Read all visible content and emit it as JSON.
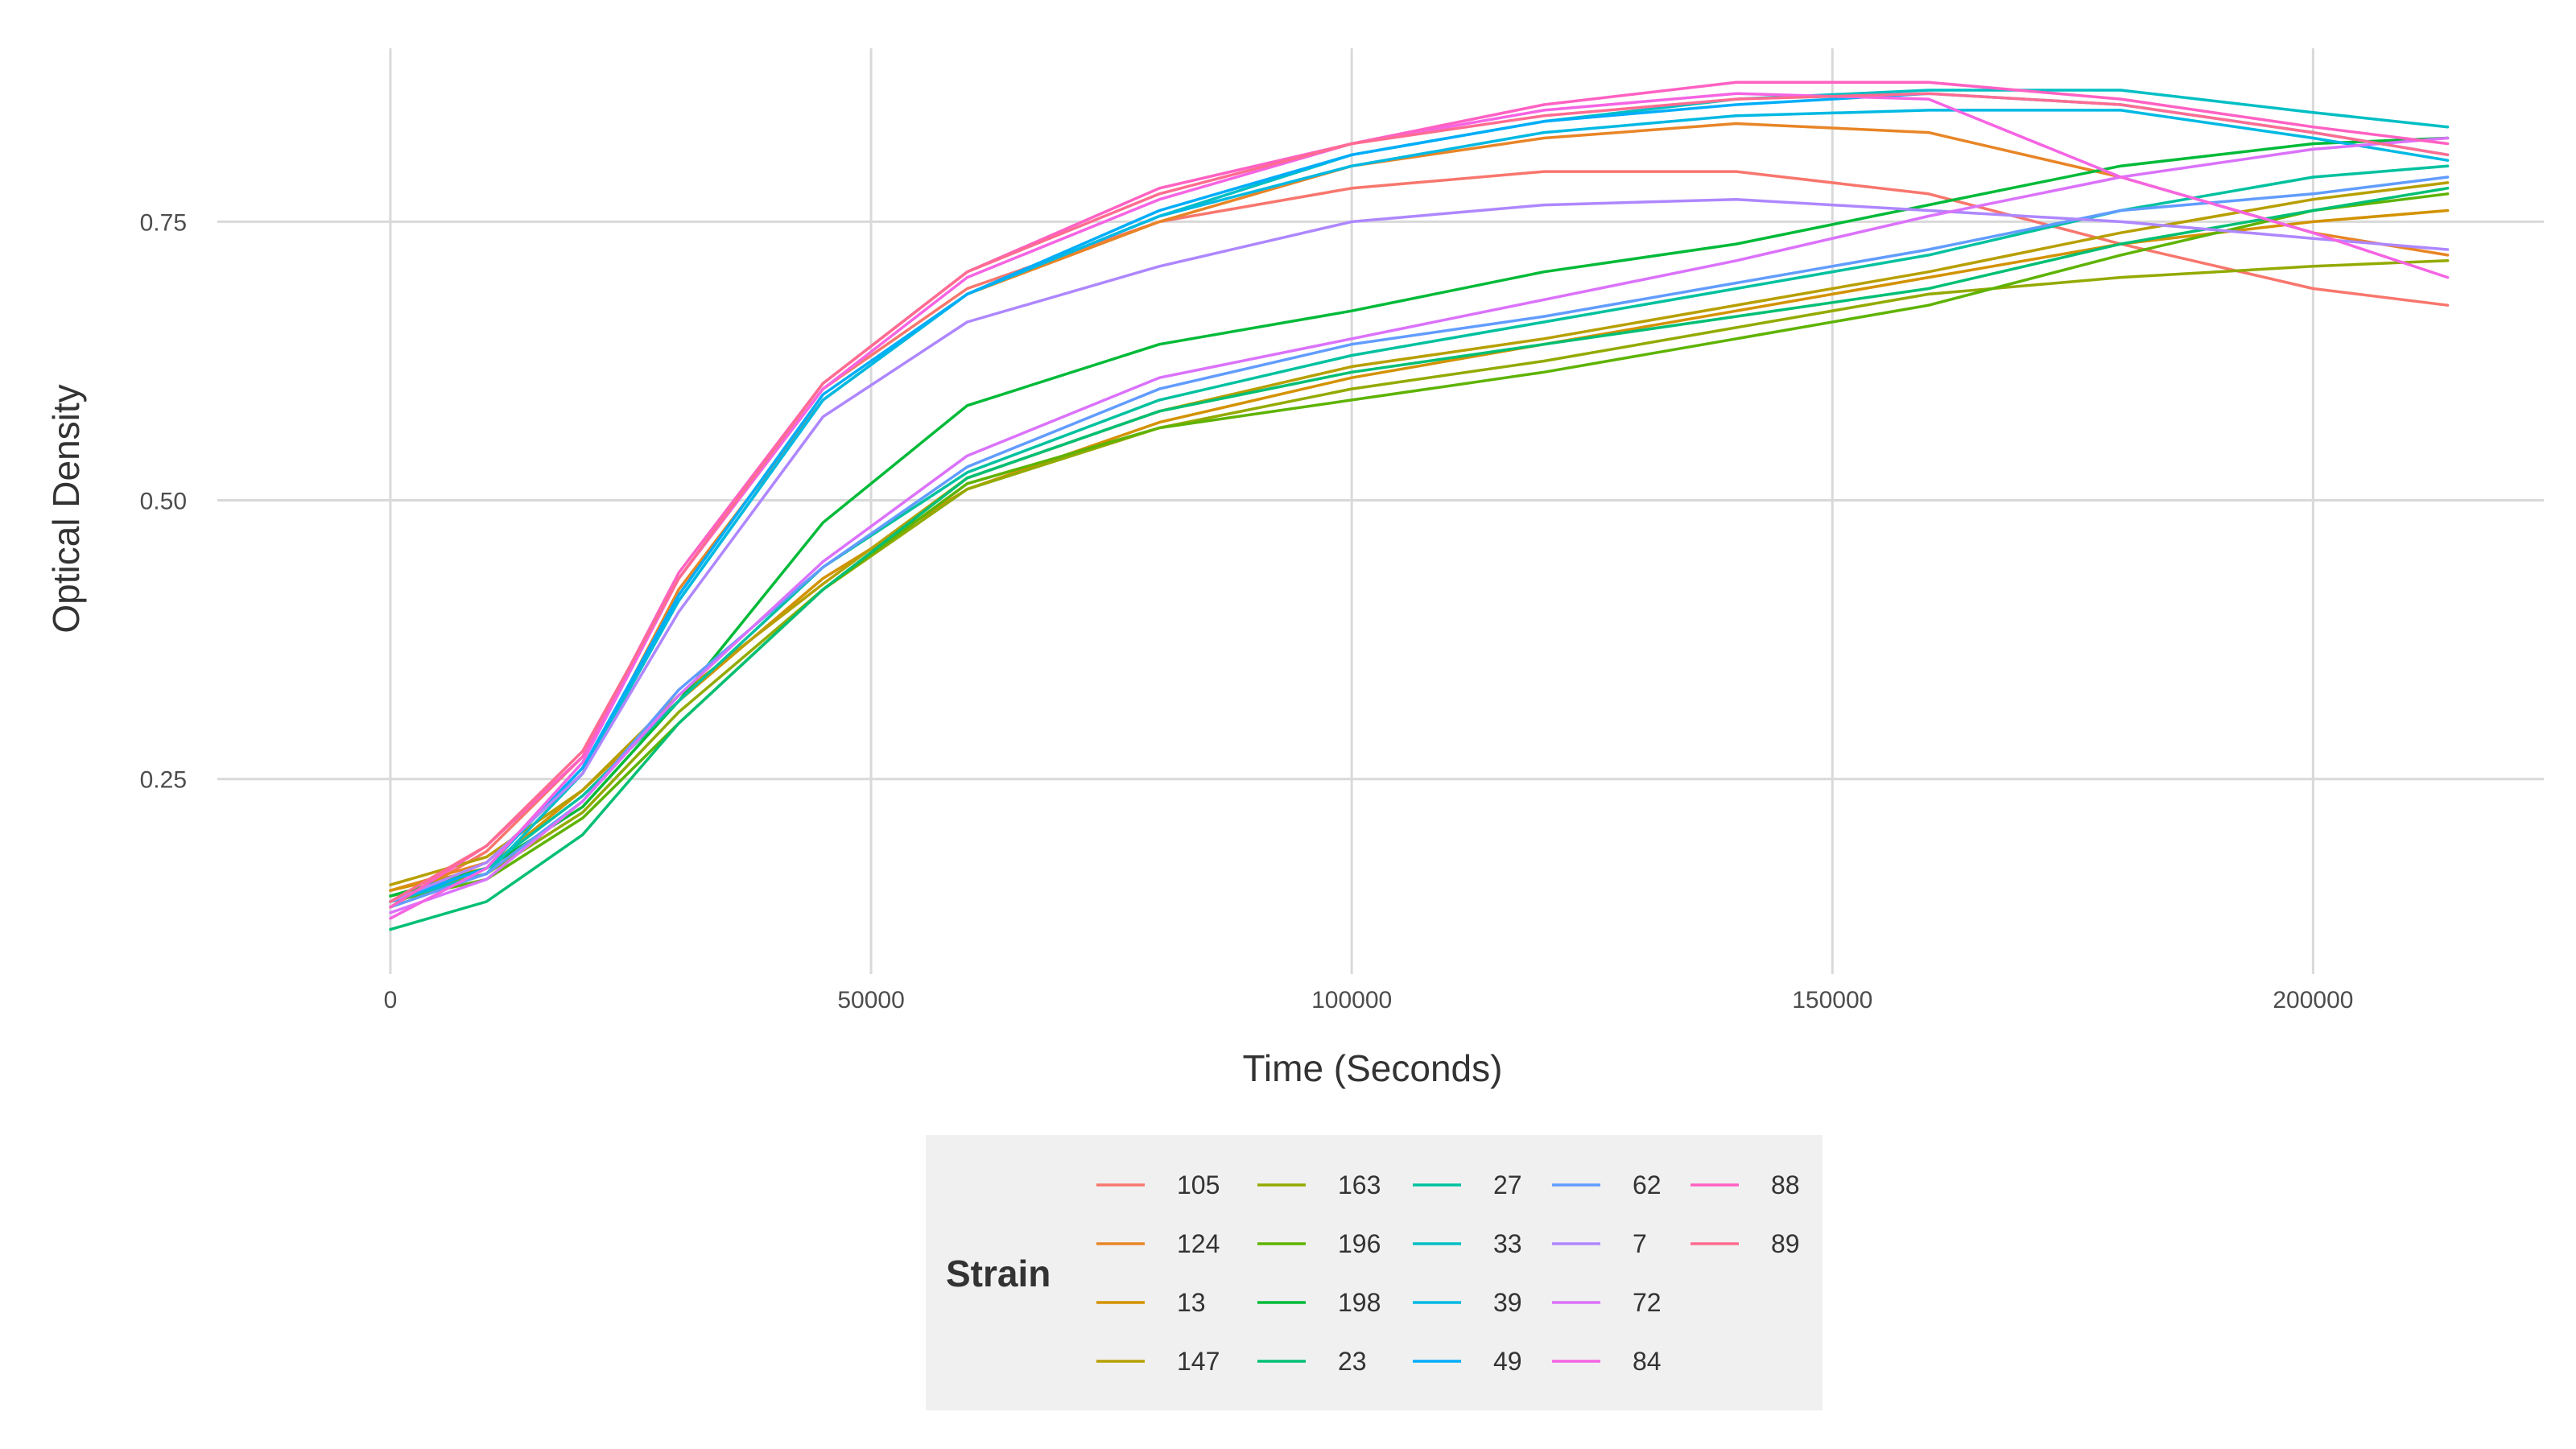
{
  "chart_data": {
    "type": "line",
    "title": "",
    "xlabel": "Time (Seconds)",
    "ylabel": "Optical Density",
    "xlim": [
      -18000,
      224000
    ],
    "ylim": [
      0.075,
      0.92
    ],
    "x_ticks": [
      0,
      50000,
      100000,
      150000,
      200000
    ],
    "y_ticks": [
      0.25,
      0.5,
      0.75
    ],
    "x_tick_labels": [
      "0",
      "50000",
      "100000",
      "150000",
      "200000"
    ],
    "y_tick_labels": [
      "0.25",
      "0.50",
      "0.75"
    ],
    "grid": true,
    "legend": {
      "title": "Strain",
      "position": "bottom",
      "columns": 5
    },
    "series": [
      {
        "name": "105",
        "color": "#F8766D",
        "x": [
          0,
          10000,
          20000,
          30000,
          45000,
          60000,
          80000,
          100000,
          120000,
          140000,
          160000,
          180000,
          200000,
          214000
        ],
        "y": [
          0.135,
          0.185,
          0.27,
          0.43,
          0.6,
          0.69,
          0.75,
          0.78,
          0.795,
          0.795,
          0.775,
          0.73,
          0.69,
          0.675
        ]
      },
      {
        "name": "124",
        "color": "#E88526",
        "x": [
          0,
          10000,
          20000,
          30000,
          45000,
          60000,
          80000,
          100000,
          120000,
          140000,
          160000,
          180000,
          200000,
          214000
        ],
        "y": [
          0.15,
          0.175,
          0.255,
          0.42,
          0.59,
          0.685,
          0.75,
          0.8,
          0.825,
          0.838,
          0.83,
          0.79,
          0.74,
          0.72
        ]
      },
      {
        "name": "13",
        "color": "#D39200",
        "x": [
          0,
          10000,
          20000,
          30000,
          45000,
          60000,
          80000,
          100000,
          120000,
          140000,
          160000,
          180000,
          200000,
          214000
        ],
        "y": [
          0.15,
          0.17,
          0.24,
          0.32,
          0.43,
          0.51,
          0.57,
          0.61,
          0.64,
          0.67,
          0.7,
          0.73,
          0.75,
          0.76
        ]
      },
      {
        "name": "147",
        "color": "#B79F00",
        "x": [
          0,
          10000,
          20000,
          30000,
          45000,
          60000,
          80000,
          100000,
          120000,
          140000,
          160000,
          180000,
          200000,
          214000
        ],
        "y": [
          0.155,
          0.18,
          0.24,
          0.325,
          0.425,
          0.52,
          0.58,
          0.62,
          0.645,
          0.675,
          0.705,
          0.74,
          0.77,
          0.785
        ]
      },
      {
        "name": "163",
        "color": "#93AA00",
        "x": [
          0,
          10000,
          20000,
          30000,
          45000,
          60000,
          80000,
          100000,
          120000,
          140000,
          160000,
          180000,
          200000,
          214000
        ],
        "y": [
          0.145,
          0.165,
          0.22,
          0.31,
          0.42,
          0.51,
          0.565,
          0.6,
          0.625,
          0.655,
          0.685,
          0.7,
          0.71,
          0.715
        ]
      },
      {
        "name": "196",
        "color": "#5EB300",
        "x": [
          0,
          10000,
          20000,
          30000,
          45000,
          60000,
          80000,
          100000,
          120000,
          140000,
          160000,
          180000,
          200000,
          214000
        ],
        "y": [
          0.14,
          0.16,
          0.215,
          0.3,
          0.42,
          0.515,
          0.565,
          0.59,
          0.615,
          0.645,
          0.675,
          0.72,
          0.76,
          0.775
        ]
      },
      {
        "name": "198",
        "color": "#00BA38",
        "x": [
          0,
          10000,
          20000,
          30000,
          45000,
          60000,
          80000,
          100000,
          120000,
          140000,
          160000,
          180000,
          200000,
          214000
        ],
        "y": [
          0.145,
          0.17,
          0.225,
          0.32,
          0.48,
          0.585,
          0.64,
          0.67,
          0.705,
          0.73,
          0.765,
          0.8,
          0.82,
          0.825
        ]
      },
      {
        "name": "23",
        "color": "#00BF74",
        "x": [
          0,
          10000,
          20000,
          30000,
          45000,
          60000,
          80000,
          100000,
          120000,
          140000,
          160000,
          180000,
          200000,
          214000
        ],
        "y": [
          0.115,
          0.14,
          0.2,
          0.3,
          0.42,
          0.52,
          0.58,
          0.615,
          0.64,
          0.665,
          0.69,
          0.73,
          0.76,
          0.78
        ]
      },
      {
        "name": "27",
        "color": "#00C19F",
        "x": [
          0,
          10000,
          20000,
          30000,
          45000,
          60000,
          80000,
          100000,
          120000,
          140000,
          160000,
          180000,
          200000,
          214000
        ],
        "y": [
          0.14,
          0.17,
          0.235,
          0.32,
          0.44,
          0.525,
          0.59,
          0.63,
          0.66,
          0.69,
          0.72,
          0.76,
          0.79,
          0.8
        ]
      },
      {
        "name": "33",
        "color": "#00BFC4",
        "x": [
          0,
          10000,
          20000,
          30000,
          45000,
          60000,
          80000,
          100000,
          120000,
          140000,
          160000,
          180000,
          200000,
          214000
        ],
        "y": [
          0.14,
          0.165,
          0.255,
          0.41,
          0.59,
          0.685,
          0.755,
          0.81,
          0.84,
          0.86,
          0.868,
          0.868,
          0.848,
          0.835
        ]
      },
      {
        "name": "39",
        "color": "#00B9E3",
        "x": [
          0,
          10000,
          20000,
          30000,
          45000,
          60000,
          80000,
          100000,
          120000,
          140000,
          160000,
          180000,
          200000,
          214000
        ],
        "y": [
          0.14,
          0.17,
          0.26,
          0.41,
          0.59,
          0.685,
          0.755,
          0.8,
          0.83,
          0.845,
          0.85,
          0.85,
          0.825,
          0.805
        ]
      },
      {
        "name": "49",
        "color": "#00ADFA",
        "x": [
          0,
          10000,
          20000,
          30000,
          45000,
          60000,
          80000,
          100000,
          120000,
          140000,
          160000,
          180000,
          200000,
          214000
        ],
        "y": [
          0.14,
          0.17,
          0.26,
          0.415,
          0.595,
          0.685,
          0.76,
          0.81,
          0.84,
          0.855,
          0.865,
          0.855,
          0.83,
          0.81
        ]
      },
      {
        "name": "62",
        "color": "#619CFF",
        "x": [
          0,
          10000,
          20000,
          30000,
          45000,
          60000,
          80000,
          100000,
          120000,
          140000,
          160000,
          180000,
          200000,
          214000
        ],
        "y": [
          0.135,
          0.165,
          0.23,
          0.33,
          0.44,
          0.53,
          0.6,
          0.64,
          0.665,
          0.695,
          0.725,
          0.76,
          0.775,
          0.79
        ]
      },
      {
        "name": "7",
        "color": "#AE87FF",
        "x": [
          0,
          10000,
          20000,
          30000,
          45000,
          60000,
          80000,
          100000,
          120000,
          140000,
          160000,
          180000,
          200000,
          214000
        ],
        "y": [
          0.14,
          0.175,
          0.255,
          0.4,
          0.575,
          0.66,
          0.71,
          0.75,
          0.765,
          0.77,
          0.76,
          0.75,
          0.735,
          0.725
        ]
      },
      {
        "name": "72",
        "color": "#DB72FB",
        "x": [
          0,
          10000,
          20000,
          30000,
          45000,
          60000,
          80000,
          100000,
          120000,
          140000,
          160000,
          180000,
          200000,
          214000
        ],
        "y": [
          0.13,
          0.16,
          0.23,
          0.325,
          0.445,
          0.54,
          0.61,
          0.645,
          0.68,
          0.715,
          0.755,
          0.79,
          0.815,
          0.825
        ]
      },
      {
        "name": "84",
        "color": "#F564E3",
        "x": [
          0,
          10000,
          20000,
          30000,
          45000,
          60000,
          80000,
          100000,
          120000,
          140000,
          160000,
          180000,
          200000,
          214000
        ],
        "y": [
          0.125,
          0.17,
          0.265,
          0.43,
          0.6,
          0.7,
          0.77,
          0.82,
          0.85,
          0.865,
          0.86,
          0.79,
          0.74,
          0.7
        ]
      },
      {
        "name": "88",
        "color": "#FF61C3",
        "x": [
          0,
          10000,
          20000,
          30000,
          45000,
          60000,
          80000,
          100000,
          120000,
          140000,
          160000,
          180000,
          200000,
          214000
        ],
        "y": [
          0.135,
          0.19,
          0.27,
          0.435,
          0.605,
          0.705,
          0.78,
          0.82,
          0.855,
          0.875,
          0.875,
          0.86,
          0.835,
          0.82
        ]
      },
      {
        "name": "89",
        "color": "#FF6C91",
        "x": [
          0,
          10000,
          20000,
          30000,
          45000,
          60000,
          80000,
          100000,
          120000,
          140000,
          160000,
          180000,
          200000,
          214000
        ],
        "y": [
          0.14,
          0.19,
          0.275,
          0.43,
          0.605,
          0.705,
          0.775,
          0.82,
          0.845,
          0.86,
          0.865,
          0.855,
          0.83,
          0.81
        ]
      }
    ]
  }
}
